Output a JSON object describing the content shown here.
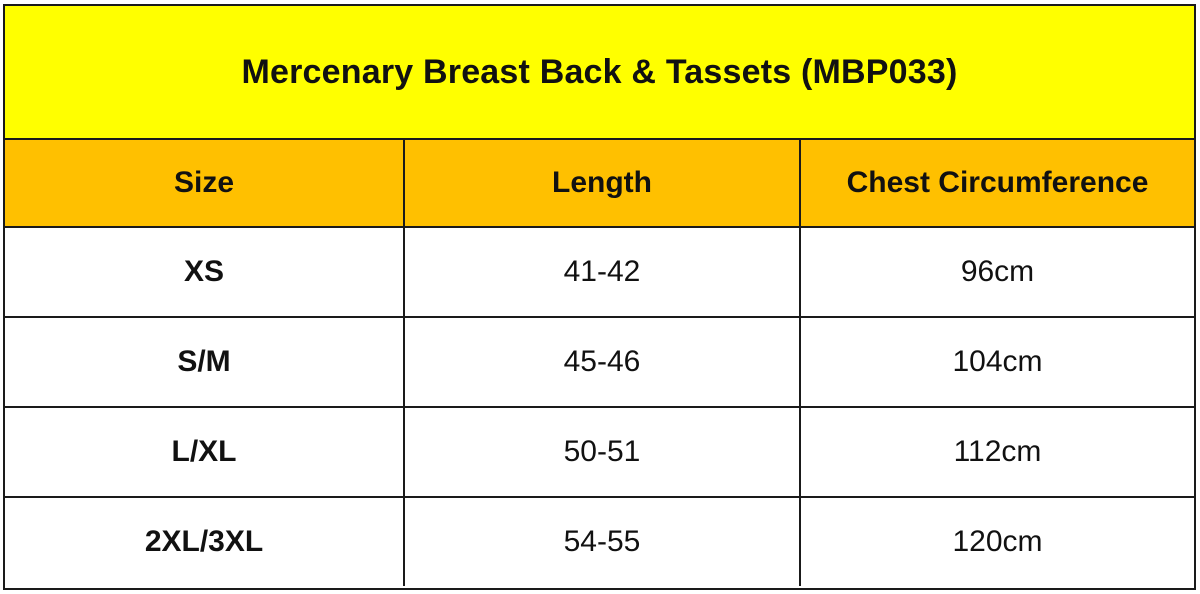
{
  "title": "Mercenary Breast Back & Tassets (MBP033)",
  "colors": {
    "title_band": "#ffff00",
    "header_band": "#ffc000",
    "border": "#1a1a1a"
  },
  "table": {
    "headers": [
      "Size",
      "Length",
      "Chest Circumference"
    ],
    "rows": [
      {
        "size": "XS",
        "length": "41-42",
        "chest": "96cm"
      },
      {
        "size": "S/M",
        "length": "45-46",
        "chest": "104cm"
      },
      {
        "size": "L/XL",
        "length": "50-51",
        "chest": "112cm"
      },
      {
        "size": "2XL/3XL",
        "length": "54-55",
        "chest": "120cm"
      }
    ]
  }
}
